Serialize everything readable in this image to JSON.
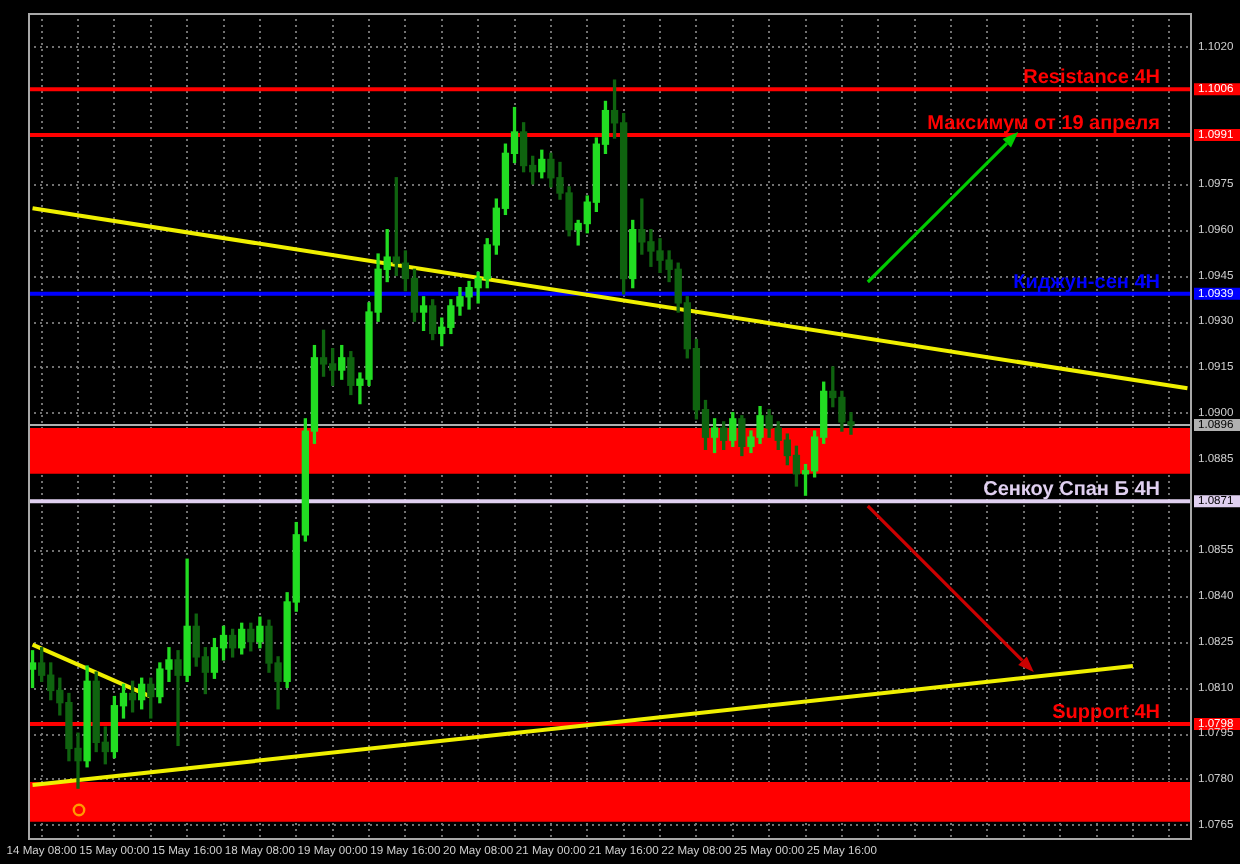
{
  "chart_data": {
    "type": "candlestick",
    "categories": [
      null,
      "14 May 08:00",
      null,
      null,
      null,
      null,
      null,
      null,
      null,
      "15 May 00:00",
      null,
      null,
      null,
      null,
      null,
      null,
      null,
      "15 May 16:00",
      null,
      null,
      null,
      null,
      null,
      null,
      null,
      "18 May 08:00",
      null,
      null,
      null,
      null,
      null,
      null,
      null,
      "19 May 00:00",
      null,
      null,
      null,
      null,
      null,
      null,
      null,
      "19 May 16:00",
      null,
      null,
      null,
      null,
      null,
      null,
      null,
      "20 May 08:00",
      null,
      null,
      null,
      null,
      null,
      null,
      null,
      "21 May 00:00",
      null,
      null,
      null,
      null,
      null,
      null,
      null,
      "21 May 16:00",
      null,
      null,
      null,
      null,
      null,
      null,
      null,
      "22 May 08:00",
      null,
      null,
      null,
      null,
      null,
      null,
      null,
      "25 May 00:00",
      null,
      null,
      null,
      null,
      null,
      null,
      null,
      "25 May 16:00",
      null,
      null,
      null,
      null,
      null,
      null,
      null,
      null,
      null,
      null,
      null,
      null,
      null,
      null,
      null,
      null,
      null,
      null,
      null,
      null,
      null,
      null,
      null,
      null,
      null,
      null,
      null,
      null,
      null,
      null,
      null,
      null,
      null,
      null,
      null,
      null,
      null,
      null
    ],
    "ohlc": [
      [
        1.0816,
        1.0822,
        1.081,
        1.0818
      ],
      [
        1.0818,
        1.0823,
        1.0812,
        1.0814
      ],
      [
        1.0814,
        1.0818,
        1.0806,
        1.0809
      ],
      [
        1.0809,
        1.0813,
        1.0801,
        1.0805
      ],
      [
        1.0805,
        1.0808,
        1.0786,
        1.079
      ],
      [
        1.079,
        1.0795,
        1.0777,
        1.0786
      ],
      [
        1.0786,
        1.0817,
        1.0784,
        1.0812
      ],
      [
        1.0812,
        1.0815,
        1.0789,
        1.0792
      ],
      [
        1.0792,
        1.0797,
        1.0785,
        1.0789
      ],
      [
        1.0789,
        1.0807,
        1.0787,
        1.0804
      ],
      [
        1.0804,
        1.0811,
        1.08,
        1.0808
      ],
      [
        1.0808,
        1.0812,
        1.0802,
        1.0806
      ],
      [
        1.0806,
        1.0813,
        1.0803,
        1.0811
      ],
      [
        1.0811,
        1.0813,
        1.08,
        1.0807
      ],
      [
        1.0807,
        1.0818,
        1.0805,
        1.0816
      ],
      [
        1.0816,
        1.0823,
        1.0812,
        1.0819
      ],
      [
        1.0819,
        1.0822,
        1.0791,
        1.0814
      ],
      [
        1.0814,
        1.0852,
        1.0812,
        1.083
      ],
      [
        1.083,
        1.0834,
        1.0817,
        1.082
      ],
      [
        1.082,
        1.0823,
        1.0808,
        1.0815
      ],
      [
        1.0815,
        1.0826,
        1.0813,
        1.0823
      ],
      [
        1.0823,
        1.083,
        1.0819,
        1.0827
      ],
      [
        1.0827,
        1.0829,
        1.082,
        1.0823
      ],
      [
        1.0823,
        1.0831,
        1.0821,
        1.0829
      ],
      [
        1.0829,
        1.0831,
        1.0822,
        1.0825
      ],
      [
        1.0825,
        1.0833,
        1.0823,
        1.083
      ],
      [
        1.083,
        1.0832,
        1.0815,
        1.0818
      ],
      [
        1.0818,
        1.082,
        1.0803,
        1.0812
      ],
      [
        1.0812,
        1.0841,
        1.081,
        1.0838
      ],
      [
        1.0838,
        1.0864,
        1.0835,
        1.086
      ],
      [
        1.086,
        1.0898,
        1.0858,
        1.0894
      ],
      [
        1.0894,
        1.0922,
        1.089,
        1.0918
      ],
      [
        1.0918,
        1.0927,
        1.0912,
        1.0916
      ],
      [
        1.0916,
        1.0921,
        1.0909,
        1.0914
      ],
      [
        1.0914,
        1.0922,
        1.0911,
        1.0918
      ],
      [
        1.0918,
        1.092,
        1.0906,
        1.0909
      ],
      [
        1.0909,
        1.0913,
        1.0903,
        1.0911
      ],
      [
        1.0911,
        1.0936,
        1.0909,
        1.0933
      ],
      [
        1.0933,
        1.0952,
        1.093,
        1.0947
      ],
      [
        1.0947,
        1.096,
        1.0943,
        1.0951
      ],
      [
        1.0951,
        1.0977,
        1.0945,
        1.0949
      ],
      [
        1.0949,
        1.0953,
        1.094,
        1.0944
      ],
      [
        1.0944,
        1.0947,
        1.093,
        1.0933
      ],
      [
        1.0933,
        1.0938,
        1.0927,
        1.0935
      ],
      [
        1.0935,
        1.0937,
        1.0924,
        1.0926
      ],
      [
        1.0926,
        1.0931,
        1.0922,
        1.0928
      ],
      [
        1.0928,
        1.0937,
        1.0926,
        1.0935
      ],
      [
        1.0935,
        1.0941,
        1.0932,
        1.0938
      ],
      [
        1.0938,
        1.0943,
        1.0934,
        1.0941
      ],
      [
        1.0941,
        1.0946,
        1.0936,
        1.0944
      ],
      [
        1.0944,
        1.0957,
        1.0941,
        1.0955
      ],
      [
        1.0955,
        1.097,
        1.0952,
        1.0967
      ],
      [
        1.0967,
        1.0988,
        1.0965,
        1.0985
      ],
      [
        1.0985,
        1.1,
        1.0982,
        1.0992
      ],
      [
        1.0992,
        1.0995,
        1.0979,
        1.0981
      ],
      [
        1.0981,
        1.0984,
        1.0975,
        1.0979
      ],
      [
        1.0979,
        1.0986,
        1.0977,
        1.0983
      ],
      [
        1.0983,
        1.0985,
        1.0974,
        1.0977
      ],
      [
        1.0977,
        1.0982,
        1.097,
        1.0972
      ],
      [
        1.0972,
        1.0974,
        1.0958,
        1.096
      ],
      [
        1.096,
        1.0963,
        1.0955,
        1.0962
      ],
      [
        1.0962,
        1.0971,
        1.0959,
        1.0969
      ],
      [
        1.0969,
        1.099,
        1.0966,
        1.0988
      ],
      [
        1.0988,
        1.1002,
        1.0985,
        1.0999
      ],
      [
        1.0999,
        1.1009,
        1.099,
        1.0995
      ],
      [
        1.0995,
        1.0998,
        1.0939,
        1.0944
      ],
      [
        1.0944,
        1.0963,
        1.0941,
        1.096
      ],
      [
        1.096,
        1.097,
        1.0952,
        1.0956
      ],
      [
        1.0956,
        1.096,
        1.0948,
        1.0953
      ],
      [
        1.0953,
        1.0957,
        1.0946,
        1.095
      ],
      [
        1.095,
        1.0953,
        1.0943,
        1.0947
      ],
      [
        1.0947,
        1.0949,
        1.0933,
        1.0936
      ],
      [
        1.0936,
        1.0938,
        1.0918,
        1.0921
      ],
      [
        1.0921,
        1.0924,
        1.0898,
        1.0901
      ],
      [
        1.0901,
        1.0904,
        1.0888,
        1.0892
      ],
      [
        1.0892,
        1.0898,
        1.0887,
        1.0895
      ],
      [
        1.0895,
        1.0897,
        1.0888,
        1.0891
      ],
      [
        1.0891,
        1.09,
        1.0889,
        1.0898
      ],
      [
        1.0898,
        1.0899,
        1.0886,
        1.0889
      ],
      [
        1.0889,
        1.0894,
        1.0887,
        1.0892
      ],
      [
        1.0892,
        1.0902,
        1.089,
        1.0899
      ],
      [
        1.0899,
        1.0901,
        1.0892,
        1.0895
      ],
      [
        1.0895,
        1.0897,
        1.0888,
        1.0891
      ],
      [
        1.0891,
        1.0893,
        1.0883,
        1.0886
      ],
      [
        1.0886,
        1.0889,
        1.0876,
        1.088
      ],
      [
        1.088,
        1.0883,
        1.0873,
        1.0881
      ],
      [
        1.0881,
        1.0894,
        1.0879,
        1.0892
      ],
      [
        1.0892,
        1.091,
        1.089,
        1.0907
      ],
      [
        1.0907,
        1.0915,
        1.0902,
        1.0905
      ],
      [
        1.0905,
        1.0907,
        1.0894,
        1.0897
      ],
      [
        1.0897,
        1.09,
        1.0893,
        1.0896
      ],
      null,
      null,
      null,
      null,
      null,
      null,
      null,
      null,
      null,
      null,
      null,
      null,
      null,
      null,
      null,
      null,
      null,
      null,
      null,
      null,
      null,
      null,
      null,
      null,
      null,
      null,
      null,
      null,
      null,
      null,
      null,
      null,
      null,
      null,
      null,
      null,
      null
    ],
    "colors": [
      "#22dd22",
      "#0f630f",
      "#0f630f",
      "#0f630f",
      "#0f630f",
      "#0f630f",
      "#22dd22",
      "#0f630f",
      "#0f630f",
      "#22dd22",
      "#22dd22",
      "#0f630f",
      "#22dd22",
      "#0f630f",
      "#22dd22",
      "#22dd22",
      "#0f630f",
      "#22dd22",
      "#0f630f",
      "#0f630f",
      "#22dd22",
      "#22dd22",
      "#0f630f",
      "#22dd22",
      "#0f630f",
      "#22dd22",
      "#0f630f",
      "#0f630f",
      "#22dd22",
      "#22dd22",
      "#22dd22",
      "#22dd22",
      "#0f630f",
      "#0f630f",
      "#22dd22",
      "#0f630f",
      "#22dd22",
      "#22dd22",
      "#22dd22",
      "#22dd22",
      "#0f630f",
      "#0f630f",
      "#0f630f",
      "#22dd22",
      "#0f630f",
      "#22dd22",
      "#22dd22",
      "#22dd22",
      "#22dd22",
      "#22dd22",
      "#22dd22",
      "#22dd22",
      "#22dd22",
      "#22dd22",
      "#0f630f",
      "#0f630f",
      "#22dd22",
      "#0f630f",
      "#0f630f",
      "#0f630f",
      "#22dd22",
      "#22dd22",
      "#22dd22",
      "#22dd22",
      "#0f630f",
      "#0f630f",
      "#22dd22",
      "#0f630f",
      "#0f630f",
      "#0f630f",
      "#0f630f",
      "#0f630f",
      "#0f630f",
      "#0f630f",
      "#0f630f",
      "#22dd22",
      "#0f630f",
      "#22dd22",
      "#0f630f",
      "#22dd22",
      "#22dd22",
      "#0f630f",
      "#0f630f",
      "#0f630f",
      "#0f630f",
      "#22dd22",
      "#22dd22",
      "#22dd22",
      "#0f630f",
      "#0f630f",
      "#0f630f",
      null,
      null,
      null,
      null,
      null,
      null,
      null,
      null,
      null,
      null,
      null,
      null,
      null,
      null,
      null,
      null,
      null,
      null,
      null,
      null,
      null,
      null,
      null,
      null,
      null,
      null,
      null,
      null,
      null,
      null,
      null,
      null,
      null,
      null,
      null,
      null,
      null
    ],
    "series": [
      {
        "type": "line",
        "color": "#f0f000",
        "values": [
          1.0967,
          null,
          null,
          null,
          null,
          null,
          null,
          null,
          null,
          null,
          null,
          null,
          null,
          null,
          null,
          null,
          null,
          null,
          null,
          null,
          null,
          null,
          null,
          null,
          null,
          null,
          null,
          null,
          null,
          null,
          null,
          null,
          null,
          null,
          null,
          null,
          null,
          null,
          null,
          null,
          null,
          null,
          null,
          null,
          null,
          null,
          null,
          null,
          null,
          null,
          null,
          null,
          null,
          null,
          null,
          null,
          null,
          null,
          null,
          null,
          null,
          null,
          null,
          null,
          null,
          null,
          null,
          null,
          null,
          null,
          null,
          null,
          null,
          null,
          null,
          null,
          null,
          null,
          null,
          null,
          null,
          null,
          null,
          null,
          null,
          null,
          null,
          null,
          null,
          null,
          null,
          null,
          null,
          null,
          null,
          null,
          null,
          null,
          null,
          null,
          null,
          null,
          null,
          null,
          null,
          null,
          null,
          null,
          null,
          null,
          null,
          null,
          null,
          null,
          null,
          null,
          null,
          null,
          null,
          null,
          null,
          null,
          null,
          null,
          null,
          null,
          null,
          1.0908
        ]
      },
      {
        "type": "line",
        "color": "#f0f000",
        "values": [
          1.0824,
          null,
          null,
          null,
          null,
          null,
          null,
          null,
          null,
          null,
          null,
          null,
          null,
          1.0807,
          null,
          null,
          null,
          null,
          null,
          null,
          null,
          null,
          null,
          null,
          null,
          null,
          null,
          null,
          null,
          null,
          null,
          null,
          null,
          null,
          null,
          null,
          null,
          null,
          null,
          null,
          null,
          null,
          null,
          null,
          null,
          null,
          null,
          null,
          null,
          null,
          null,
          null,
          null,
          null,
          null,
          null,
          null,
          null,
          null,
          null,
          null,
          null,
          null,
          null,
          null,
          null,
          null,
          null,
          null,
          null,
          null,
          null,
          null,
          null,
          null,
          null,
          null,
          null,
          null,
          null,
          null,
          null,
          null,
          null,
          null,
          null,
          null,
          null,
          null,
          null,
          null,
          null,
          null,
          null,
          null,
          null,
          null,
          null,
          null,
          null,
          null,
          null,
          null,
          null,
          null,
          null,
          null,
          null,
          null,
          null,
          null,
          null,
          null,
          null,
          null,
          null,
          null,
          null,
          null,
          null,
          null,
          null,
          null,
          null,
          null,
          null,
          null,
          null
        ]
      },
      {
        "type": "line",
        "color": "#f0f000",
        "values": [
          1.0778,
          null,
          null,
          null,
          null,
          null,
          null,
          null,
          null,
          null,
          null,
          null,
          null,
          null,
          null,
          null,
          null,
          null,
          null,
          null,
          null,
          null,
          null,
          null,
          null,
          null,
          null,
          null,
          null,
          null,
          null,
          null,
          null,
          null,
          null,
          null,
          null,
          null,
          null,
          null,
          null,
          null,
          null,
          null,
          null,
          null,
          null,
          null,
          null,
          null,
          null,
          null,
          null,
          null,
          null,
          null,
          null,
          null,
          null,
          null,
          null,
          null,
          null,
          null,
          null,
          null,
          null,
          null,
          null,
          null,
          null,
          null,
          null,
          null,
          null,
          null,
          null,
          null,
          null,
          null,
          null,
          null,
          null,
          null,
          null,
          null,
          null,
          null,
          null,
          null,
          null,
          null,
          null,
          null,
          null,
          null,
          null,
          null,
          null,
          null,
          null,
          null,
          null,
          null,
          null,
          null,
          null,
          null,
          null,
          null,
          null,
          null,
          null,
          null,
          null,
          null,
          null,
          null,
          null,
          null,
          null,
          1.0817,
          null,
          null,
          null,
          null,
          null,
          null
        ]
      }
    ],
    "ylim": [
      1.076,
      1.1031
    ],
    "yticks": [
      {
        "value": 1.102,
        "label": "1.1020"
      },
      1.1006,
      1.0991,
      1.0975,
      {
        "value": 1.096,
        "label": "1.0960"
      },
      1.0945,
      1.0939,
      {
        "value": 1.093,
        "label": "1.0930"
      },
      1.0915,
      {
        "value": 1.09,
        "label": "1.0900"
      },
      1.0896,
      1.0885,
      1.0871,
      1.0855,
      {
        "value": 1.084,
        "label": "1.0840"
      },
      1.0825,
      {
        "value": 1.081,
        "label": "1.0810"
      },
      1.0798,
      1.0795,
      {
        "value": 1.078,
        "label": "1.0780"
      },
      1.0765
    ],
    "ref_lines": [
      {
        "axis": "y",
        "value": 1.1006,
        "label": "Resistance 4H",
        "color": "#ff0000"
      },
      {
        "axis": "y",
        "value": 1.0991,
        "label": "Максимум от 19 апреля",
        "color": "#ff0000"
      },
      {
        "axis": "y",
        "value": 1.0939,
        "label": "Киджун-сен 4H",
        "color": "#0000ff"
      },
      {
        "axis": "y",
        "value": 1.0896,
        "label": null,
        "color": "#b0b0b0"
      },
      {
        "axis": "y",
        "value": 1.0871,
        "label": "Сенкоу Спан Б 4H",
        "color": "#e0d0f0"
      },
      {
        "axis": "y",
        "value": 1.0798,
        "label": "Support 4H",
        "color": "#ff0000"
      }
    ],
    "bands": [
      {
        "axis": "y",
        "from": 1.088,
        "to": 1.0895,
        "color": "#ff0000"
      },
      {
        "axis": "y",
        "from": 1.0766,
        "to": 1.0779,
        "color": "#ff0000"
      }
    ],
    "grid": true,
    "marker": "none"
  }
}
